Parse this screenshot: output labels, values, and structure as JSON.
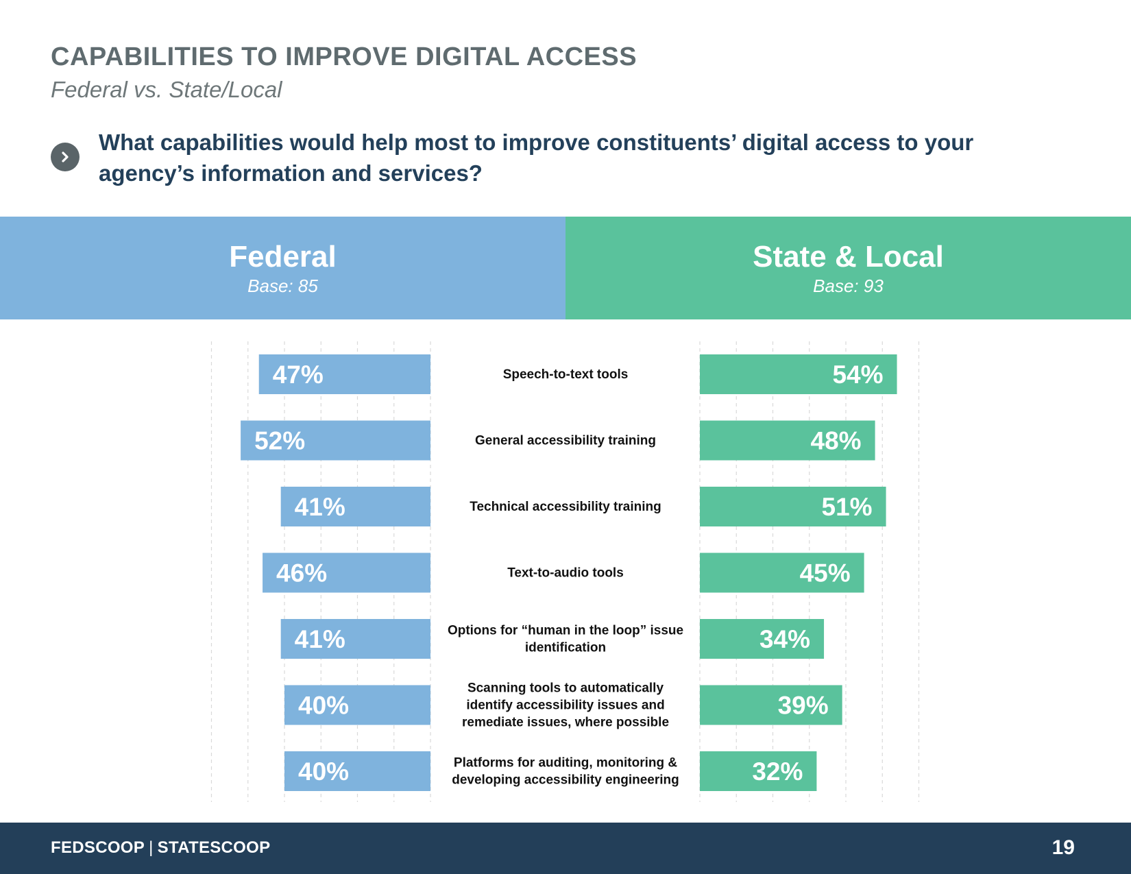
{
  "title": "CAPABILITIES TO IMPROVE DIGITAL ACCESS",
  "subtitle": "Federal vs. State/Local",
  "question": "What capabilities would help most to improve constituents’ digital access to your agency’s information and services?",
  "question_icon": "chevron-right-icon",
  "colors": {
    "federal": "#7fb3dd",
    "state_local": "#5ac29c",
    "title": "#5f6b6f",
    "question": "#23405a",
    "footer": "#233f59",
    "grid": "#d9d9d9"
  },
  "groups": {
    "federal": {
      "name": "Federal",
      "base": "Base: 85"
    },
    "state_local": {
      "name": "State & Local",
      "base": "Base: 93"
    }
  },
  "chart_data": {
    "type": "bar",
    "orientation": "horizontal-diverging",
    "categories": [
      "Speech-to-text tools",
      "General accessibility training",
      "Technical accessibility training",
      "Text-to-audio tools",
      "Options for “human in the loop” issue identification",
      "Scanning tools to automatically identify accessibility issues and remediate issues, where possible",
      "Platforms for auditing, monitoring & developing accessibility engineering"
    ],
    "series": [
      {
        "name": "Federal",
        "values": [
          47,
          52,
          41,
          46,
          41,
          40,
          40
        ]
      },
      {
        "name": "State & Local",
        "values": [
          54,
          48,
          51,
          45,
          34,
          39,
          32
        ]
      }
    ],
    "value_suffix": "%",
    "xlim": [
      0,
      100
    ],
    "grid": true
  },
  "footer": {
    "brand_left": "FEDSCOOP",
    "brand_sep": "|",
    "brand_right": "STATESCOOP",
    "page": "19"
  }
}
